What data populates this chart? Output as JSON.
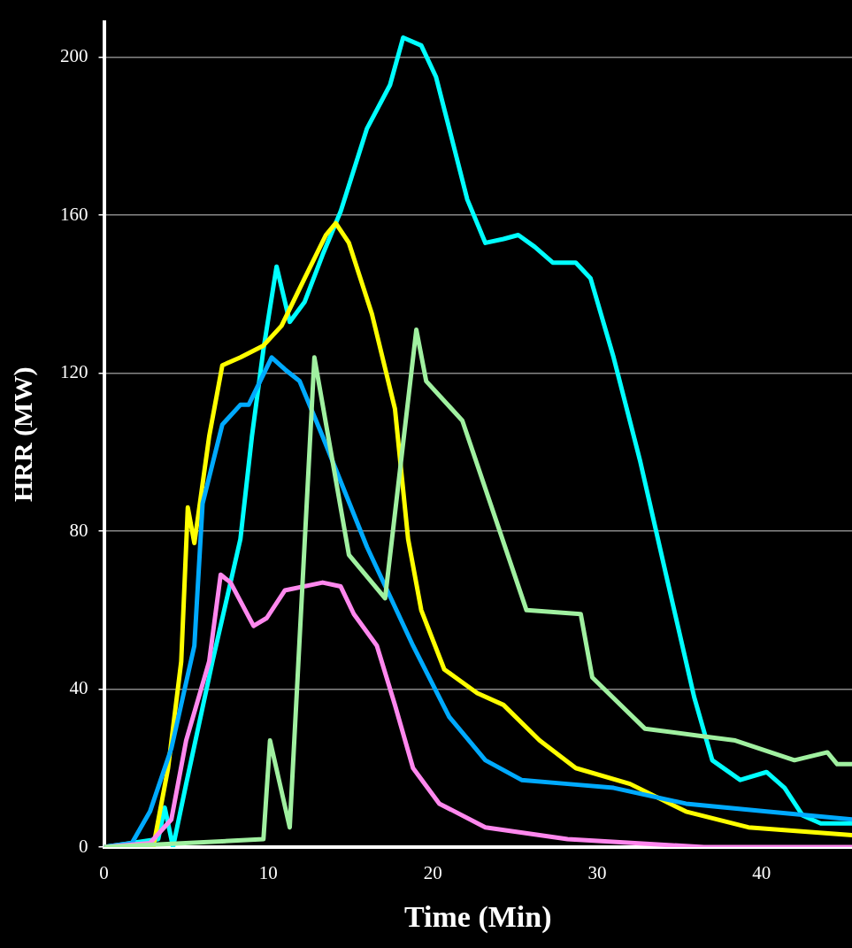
{
  "chart_data": {
    "type": "line",
    "xlabel": "Time (Min)",
    "ylabel": "HRR (MW)",
    "xlim": [
      0,
      45.5
    ],
    "ylim": [
      0,
      209
    ],
    "xticks": [
      0,
      10,
      20,
      30,
      40
    ],
    "yticks": [
      0,
      40,
      80,
      120,
      160,
      200
    ],
    "grid": "y",
    "legend": false,
    "marker": "none",
    "line_style": "solid",
    "series": [
      {
        "color": "#a0f0a0",
        "x": [
          0,
          9.7,
          10.1,
          11.3,
          12.8,
          14.9,
          17.1,
          19,
          19.6,
          21.8,
          25.7,
          29,
          29.7,
          32.9,
          36.5,
          38.4,
          42,
          44,
          44.6,
          45.5
        ],
        "values": [
          0,
          2,
          27,
          5,
          124,
          74,
          63,
          131,
          118,
          108,
          60,
          59,
          43,
          30,
          28,
          27,
          22,
          24,
          21,
          21
        ]
      },
      {
        "color": "#ff88ee",
        "x": [
          0,
          2.8,
          4.1,
          5,
          6.4,
          7.1,
          7.7,
          9.1,
          9.9,
          11,
          13.3,
          14.4,
          15.2,
          16.6,
          17.7,
          18.8,
          20.4,
          23.2,
          28.2,
          36.5,
          45.5
        ],
        "values": [
          0,
          1,
          7,
          27,
          47,
          69,
          67,
          56,
          58,
          65,
          67,
          66,
          59,
          51,
          36,
          20,
          11,
          5,
          2,
          0,
          0
        ]
      },
      {
        "color": "#00aaff",
        "x": [
          0,
          1.7,
          2.8,
          4.1,
          5.5,
          6,
          7.2,
          8.3,
          8.8,
          10.2,
          11,
          11.9,
          13.3,
          16,
          18.8,
          21,
          23.2,
          25.4,
          28.2,
          31,
          35.4,
          40.3,
          45.5
        ],
        "values": [
          0,
          1,
          9,
          25,
          51,
          87,
          107,
          112,
          112,
          124,
          121,
          118,
          104,
          76,
          51,
          33,
          22,
          17,
          16,
          15,
          11,
          9,
          7
        ]
      },
      {
        "color": "#ffff00",
        "x": [
          0,
          3,
          3.9,
          4.7,
          5.1,
          5.5,
          6.4,
          7.2,
          8.3,
          9.7,
          10.8,
          12.2,
          13.5,
          14.1,
          14.9,
          16.3,
          17.7,
          18.5,
          19.3,
          20.7,
          22.7,
          24.3,
          26.5,
          28.7,
          32,
          35.4,
          39.2,
          45.5
        ],
        "values": [
          0,
          0,
          20,
          47,
          86,
          77,
          104,
          122,
          124,
          127,
          132,
          144,
          155,
          158,
          153,
          135,
          111,
          78,
          60,
          45,
          39,
          36,
          27,
          20,
          16,
          9,
          5,
          3
        ]
      },
      {
        "color": "#00ffff",
        "x": [
          0,
          3.3,
          3.7,
          4.2,
          5,
          6.6,
          8.3,
          9,
          9.7,
          10.5,
          11.3,
          12.2,
          13.3,
          14.4,
          16,
          17.4,
          18.2,
          19.3,
          20.2,
          21,
          22.1,
          23.2,
          24.3,
          25.2,
          26.2,
          27.3,
          28.7,
          29.6,
          31,
          32.6,
          34.3,
          35.9,
          37,
          38.7,
          40.3,
          41.4,
          42.5,
          43.6,
          45.5
        ],
        "values": [
          0,
          2,
          10,
          0,
          16,
          47,
          78,
          104,
          126,
          147,
          133,
          138,
          150,
          161,
          182,
          193,
          205,
          203,
          195,
          182,
          164,
          153,
          154,
          155,
          152,
          148,
          148,
          144,
          124,
          98,
          67,
          38,
          22,
          17,
          19,
          15,
          8,
          6,
          6
        ]
      }
    ]
  }
}
